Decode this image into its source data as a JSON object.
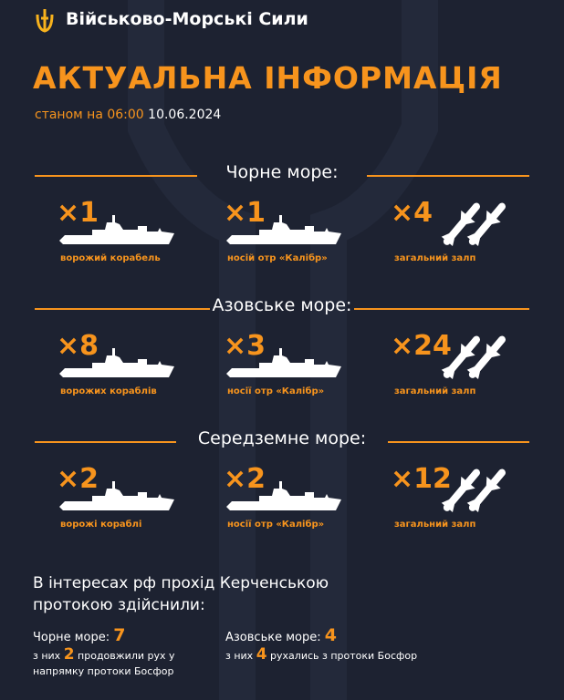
{
  "header": {
    "org": "Військово-Морські Сили",
    "title": "АКТУАЛЬНА ІНФОРМАЦІЯ",
    "date_prefix": "станом на 06:00",
    "date": "10.06.2024"
  },
  "sections": [
    {
      "name": "Чорне море:",
      "items": [
        {
          "count": "×1",
          "label": "ворожий корабель",
          "icon": "ship"
        },
        {
          "count": "×1",
          "label": "носій отр «Калібр»",
          "icon": "ship"
        },
        {
          "count": "×4",
          "label": "загальний залп",
          "icon": "missiles"
        }
      ]
    },
    {
      "name": "Азовське море:",
      "items": [
        {
          "count": "×8",
          "label": "ворожих кораблів",
          "icon": "ship"
        },
        {
          "count": "×3",
          "label": "носії отр «Калібр»",
          "icon": "ship"
        },
        {
          "count": "×24",
          "label": "загальний залп",
          "icon": "missiles"
        }
      ]
    },
    {
      "name": "Середземне море:",
      "items": [
        {
          "count": "×2",
          "label": "ворожі кораблі",
          "icon": "ship"
        },
        {
          "count": "×2",
          "label": "носії отр «Калібр»",
          "icon": "ship"
        },
        {
          "count": "×12",
          "label": "загальний залп",
          "icon": "missiles"
        }
      ]
    }
  ],
  "footer": {
    "text": "В інтересах рф прохід Керченською протокою здійснили:",
    "stats": [
      {
        "label": "Чорне море:",
        "value": "7",
        "note_prefix": "з них",
        "note_value": "2",
        "note_suffix": "продовжили рух у напрямку протоки Босфор"
      },
      {
        "label": "Азовське море:",
        "value": "4",
        "note_prefix": "з них",
        "note_value": "4",
        "note_suffix": "рухались з протоки Босфор"
      }
    ]
  }
}
